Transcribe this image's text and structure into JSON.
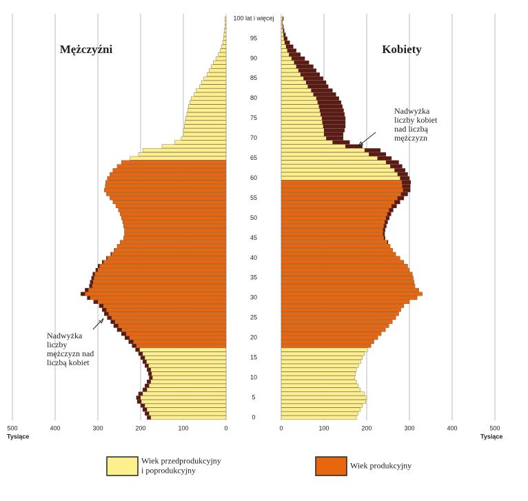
{
  "chart_data": {
    "type": "pyramid",
    "categories": [
      "0",
      null,
      null,
      null,
      null,
      "5",
      null,
      null,
      null,
      null,
      "10",
      null,
      null,
      null,
      null,
      "15",
      null,
      null,
      null,
      null,
      "20",
      null,
      null,
      null,
      null,
      "25",
      null,
      null,
      null,
      null,
      "30",
      null,
      null,
      null,
      null,
      "35",
      null,
      null,
      null,
      null,
      "40",
      null,
      null,
      null,
      null,
      "45",
      null,
      null,
      null,
      null,
      "50",
      null,
      null,
      null,
      null,
      "55",
      null,
      null,
      null,
      null,
      "60",
      null,
      null,
      null,
      null,
      "65",
      null,
      null,
      null,
      null,
      "70",
      null,
      null,
      null,
      null,
      "75",
      null,
      null,
      null,
      null,
      "80",
      null,
      null,
      null,
      null,
      "85",
      null,
      null,
      null,
      null,
      "90",
      null,
      null,
      null,
      null,
      "95",
      null,
      null,
      null,
      null,
      "100 lat i więcej"
    ],
    "series": [
      {
        "name": "Mężczyźni",
        "productive_ages": [
          18,
          64
        ],
        "values": [
          185,
          190,
          195,
          200,
          208,
          210,
          205,
          195,
          190,
          185,
          180,
          182,
          185,
          190,
          195,
          200,
          205,
          212,
          220,
          228,
          237,
          245,
          255,
          263,
          270,
          278,
          285,
          290,
          297,
          310,
          325,
          340,
          330,
          320,
          318,
          315,
          312,
          305,
          300,
          290,
          280,
          270,
          262,
          255,
          248,
          240,
          238,
          238,
          240,
          242,
          245,
          248,
          252,
          258,
          265,
          272,
          280,
          285,
          283,
          282,
          278,
          272,
          265,
          255,
          245,
          225,
          205,
          195,
          150,
          120,
          105,
          100,
          100,
          98,
          96,
          95,
          92,
          90,
          88,
          85,
          82,
          75,
          70,
          62,
          58,
          52,
          45,
          40,
          35,
          30,
          24,
          18,
          14,
          11,
          8,
          6,
          5,
          4,
          3,
          2,
          3
        ]
      },
      {
        "name": "Kobiety",
        "productive_ages": [
          18,
          59
        ],
        "values": [
          176,
          180,
          185,
          190,
          198,
          200,
          195,
          185,
          180,
          176,
          172,
          174,
          176,
          181,
          186,
          190,
          195,
          202,
          210,
          217,
          226,
          234,
          244,
          252,
          260,
          268,
          275,
          280,
          287,
          300,
          318,
          330,
          322,
          313,
          311,
          309,
          307,
          300,
          296,
          287,
          278,
          268,
          261,
          255,
          250,
          243,
          242,
          243,
          246,
          249,
          253,
          257,
          262,
          270,
          278,
          287,
          296,
          302,
          302,
          303,
          300,
          296,
          290,
          283,
          275,
          258,
          245,
          232,
          190,
          160,
          145,
          145,
          148,
          150,
          150,
          150,
          148,
          146,
          143,
          140,
          135,
          128,
          120,
          110,
          105,
          98,
          90,
          82,
          75,
          65,
          55,
          45,
          35,
          28,
          20,
          14,
          10,
          7,
          5,
          3,
          5
        ]
      }
    ],
    "colors": {
      "nonproductive": "#fcf08e",
      "productive": "#e8660f",
      "excess": "#5a1b17"
    },
    "xlim": [
      0,
      500
    ],
    "xticks": [
      0,
      100,
      200,
      300,
      400,
      500
    ],
    "x_label": "Tysiące",
    "legend": [
      {
        "name": [
          "Wiek przedprodukcyjny",
          "i poprodukcyjny"
        ],
        "color": "#fcf08e"
      },
      {
        "name": [
          "Wiek produkcyjny"
        ],
        "color": "#e8660f"
      }
    ],
    "annotations": [
      [
        "Nadwyżka",
        "liczby",
        "mężczyzn nad",
        "liczbą kobiet"
      ],
      [
        "Nadwyżka",
        "liczby kobiet",
        "nad liczbą",
        "mężczyzn"
      ]
    ]
  }
}
